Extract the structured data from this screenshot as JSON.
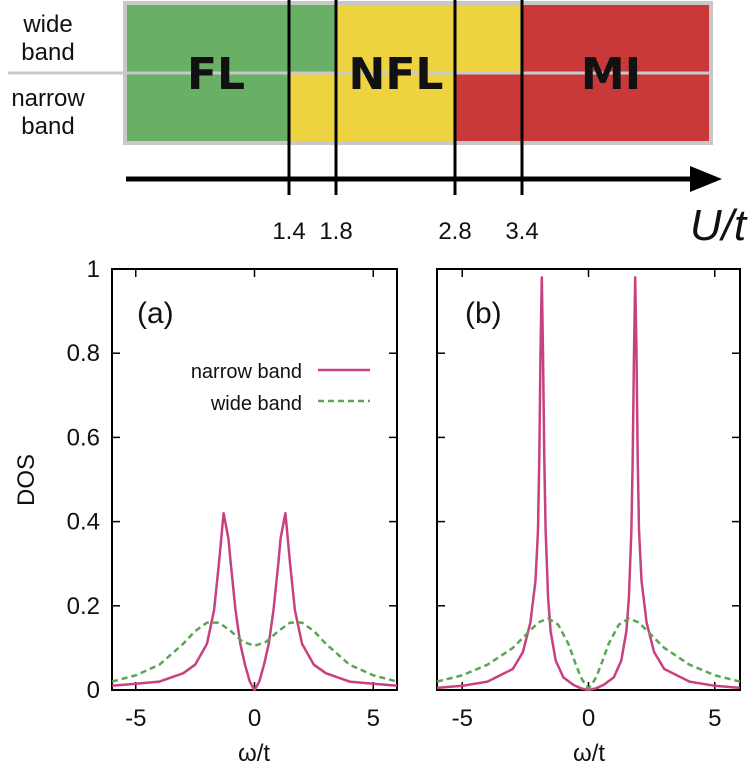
{
  "phase_diagram": {
    "row_labels": {
      "wide": [
        "wide",
        "band"
      ],
      "narrow": [
        "narrow",
        "band"
      ]
    },
    "colors": {
      "FL": "#69b066",
      "NFL": "#ecd33f",
      "MI": "#c9393a",
      "border": "#c8c8c8"
    },
    "axis_label": "U/t",
    "boundaries": [
      1.4,
      1.8,
      2.8,
      3.4
    ],
    "boundary_labels": [
      "1.4",
      "1.8",
      "2.8",
      "3.4"
    ],
    "phases": [
      "FL",
      "NFL",
      "MI"
    ],
    "wide_band_regions": [
      {
        "phase": "FL",
        "from": 0.0,
        "to": 1.8
      },
      {
        "phase": "NFL",
        "from": 1.8,
        "to": 3.4
      },
      {
        "phase": "MI",
        "from": 3.4,
        "to": 5.0
      }
    ],
    "narrow_band_regions": [
      {
        "phase": "FL",
        "from": 0.0,
        "to": 1.4
      },
      {
        "phase": "NFL",
        "from": 1.4,
        "to": 2.8
      },
      {
        "phase": "MI",
        "from": 2.8,
        "to": 5.0
      }
    ]
  },
  "chart_data": [
    {
      "type": "line",
      "panel_label": "(a)",
      "xlabel": "ω/t",
      "ylabel": "DOS",
      "xlim": [
        -6,
        6
      ],
      "ylim": [
        0,
        1
      ],
      "xticks": [
        -5,
        0,
        5
      ],
      "yticks": [
        0,
        0.2,
        0.4,
        0.6,
        0.8,
        1
      ],
      "ytick_labels": [
        "0",
        "0.2",
        "0.4",
        "0.6",
        "0.8",
        "1"
      ],
      "legend": "top-right",
      "series": [
        {
          "name": "narrow band",
          "color": "#c8417f",
          "style": "solid",
          "x": [
            -6,
            -5,
            -4,
            -3,
            -2.5,
            -2,
            -1.7,
            -1.5,
            -1.3,
            -1.1,
            -1.0,
            -0.8,
            -0.6,
            -0.4,
            -0.2,
            0,
            0.2,
            0.4,
            0.6,
            0.8,
            1.0,
            1.1,
            1.3,
            1.5,
            1.7,
            2,
            2.5,
            3,
            4,
            5,
            6
          ],
          "y": [
            0.01,
            0.015,
            0.02,
            0.04,
            0.06,
            0.11,
            0.19,
            0.3,
            0.42,
            0.36,
            0.3,
            0.19,
            0.11,
            0.06,
            0.02,
            0.0,
            0.02,
            0.06,
            0.11,
            0.19,
            0.3,
            0.36,
            0.42,
            0.3,
            0.19,
            0.11,
            0.06,
            0.04,
            0.02,
            0.015,
            0.01
          ]
        },
        {
          "name": "wide band",
          "color": "#5aa553",
          "style": "dashed",
          "x": [
            -6,
            -5,
            -4,
            -3,
            -2.5,
            -2,
            -1.5,
            -1,
            -0.5,
            0,
            0.5,
            1,
            1.5,
            2,
            2.5,
            3,
            4,
            5,
            6
          ],
          "y": [
            0.02,
            0.035,
            0.06,
            0.11,
            0.14,
            0.16,
            0.16,
            0.14,
            0.115,
            0.105,
            0.115,
            0.14,
            0.16,
            0.16,
            0.14,
            0.11,
            0.06,
            0.035,
            0.02
          ]
        }
      ]
    },
    {
      "type": "line",
      "panel_label": "(b)",
      "xlabel": "ω/t",
      "ylabel": "",
      "xlim": [
        -6,
        6
      ],
      "ylim": [
        0,
        1
      ],
      "xticks": [
        -5,
        0,
        5
      ],
      "series": [
        {
          "name": "narrow band",
          "color": "#c8417f",
          "style": "solid",
          "x": [
            -6,
            -5,
            -4,
            -3,
            -2.6,
            -2.3,
            -2.1,
            -2.0,
            -1.95,
            -1.9,
            -1.85,
            -1.8,
            -1.75,
            -1.7,
            -1.6,
            -1.5,
            -1.3,
            -1.0,
            -0.6,
            -0.3,
            0,
            0.3,
            0.6,
            1.0,
            1.3,
            1.5,
            1.6,
            1.7,
            1.75,
            1.8,
            1.85,
            1.9,
            1.95,
            2.0,
            2.1,
            2.3,
            2.6,
            3,
            4,
            5,
            6
          ],
          "y": [
            0.005,
            0.01,
            0.02,
            0.05,
            0.09,
            0.16,
            0.26,
            0.38,
            0.55,
            0.8,
            0.98,
            0.8,
            0.55,
            0.38,
            0.22,
            0.14,
            0.07,
            0.03,
            0.012,
            0.004,
            0.0,
            0.004,
            0.012,
            0.03,
            0.07,
            0.14,
            0.22,
            0.38,
            0.55,
            0.8,
            0.98,
            0.8,
            0.55,
            0.38,
            0.26,
            0.16,
            0.09,
            0.05,
            0.02,
            0.01,
            0.005
          ]
        },
        {
          "name": "wide band",
          "color": "#5aa553",
          "style": "dashed",
          "x": [
            -6,
            -5,
            -4,
            -3,
            -2.5,
            -2,
            -1.6,
            -1.2,
            -0.8,
            -0.5,
            -0.3,
            -0.1,
            0,
            0.1,
            0.3,
            0.5,
            0.8,
            1.2,
            1.6,
            2,
            2.5,
            3,
            4,
            5,
            6
          ],
          "y": [
            0.02,
            0.035,
            0.06,
            0.1,
            0.13,
            0.16,
            0.17,
            0.155,
            0.11,
            0.06,
            0.03,
            0.01,
            0.005,
            0.01,
            0.03,
            0.06,
            0.11,
            0.155,
            0.17,
            0.16,
            0.13,
            0.1,
            0.06,
            0.035,
            0.02
          ]
        }
      ]
    }
  ]
}
